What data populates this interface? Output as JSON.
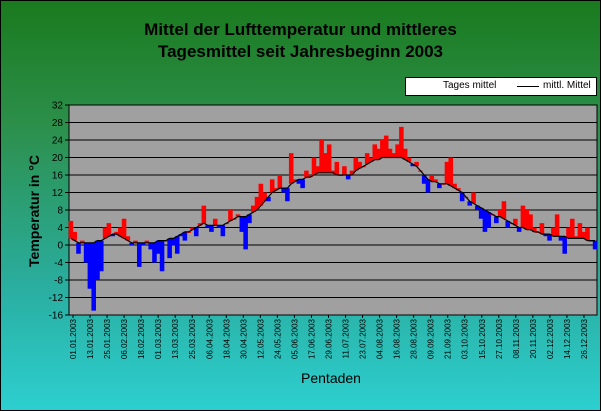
{
  "chart_data": {
    "type": "line",
    "title_lines": [
      "Mittel der Lufttemperatur und mittleres",
      "Tagesmittel seit Jahresbeginn 2003"
    ],
    "xlabel": "Pentaden",
    "ylabel": "Temperatur in °C",
    "ylim": [
      -16,
      32
    ],
    "yticks": [
      -16,
      -12,
      -8,
      -4,
      0,
      4,
      8,
      12,
      16,
      20,
      24,
      28,
      32
    ],
    "grid": true,
    "legend_position": "top-right",
    "x_tick_labels": [
      "01.01.2003",
      "13.01.2003",
      "25.01.2003",
      "06.02.2003",
      "18.02.2003",
      "01.03.2003",
      "13.03.2003",
      "25.03.2003",
      "06.04.2003",
      "18.04.2003",
      "30.04.2003",
      "12.05.2003",
      "24.05.2003",
      "05.06.2003",
      "17.06.2003",
      "29.06.2003",
      "11.07.2003",
      "23.07.2003",
      "04.08.2003",
      "16.08.2003",
      "28.08.2003",
      "09.09.2003",
      "21.09.2003",
      "03.10.2003",
      "15.10.2003",
      "27.10.2003",
      "08.11.2003",
      "20.11.2003",
      "02.12.2003",
      "14.12.2003",
      "26.12.2003"
    ],
    "series": [
      {
        "name": "Tages mittel",
        "above_mean_color": "#ff0000",
        "below_mean_color": "#0000ff",
        "values": [
          5.5,
          3,
          -2,
          1,
          -4,
          -10,
          -15,
          -8,
          -6,
          4,
          5,
          2,
          3,
          4,
          6,
          2,
          0,
          1,
          -5,
          0,
          1,
          -1,
          -4,
          -2,
          -6,
          1,
          -3,
          0,
          -2,
          2,
          1,
          3,
          4,
          2,
          5,
          9,
          4,
          3,
          6,
          4,
          2,
          5,
          8,
          6,
          7,
          3,
          -1,
          5,
          9,
          11,
          14,
          12,
          10,
          15,
          13,
          16,
          12,
          10,
          21,
          15,
          14,
          13,
          17,
          16,
          20,
          18,
          24,
          21,
          23,
          17,
          19,
          16,
          18,
          15,
          17,
          20,
          19,
          18,
          21,
          20,
          23,
          22,
          24,
          25,
          22,
          21,
          23,
          27,
          22,
          20,
          18,
          19,
          17,
          14,
          12,
          16,
          15,
          13,
          14,
          19,
          20,
          14,
          13,
          10,
          11,
          9,
          12,
          8,
          6,
          3,
          4,
          7,
          5,
          8,
          10,
          4,
          5,
          6,
          3,
          9,
          8,
          7,
          4,
          3,
          5,
          2,
          1,
          4,
          7,
          1,
          -2,
          4,
          6,
          2,
          5,
          3,
          4,
          1,
          -1
        ]
      },
      {
        "name": "mittl. Mittel",
        "color": "#000000",
        "values": [
          1.5,
          1.0,
          0.5,
          0.5,
          0.5,
          0.5,
          0.5,
          1.0,
          1.0,
          1.5,
          2.0,
          2.5,
          2.5,
          2.0,
          1.5,
          1.0,
          0.5,
          0.5,
          0.5,
          0.5,
          0.5,
          0.5,
          0.5,
          1.0,
          1.0,
          1.0,
          1.5,
          1.5,
          2.0,
          2.5,
          3.0,
          3.0,
          3.5,
          4.0,
          4.5,
          5.0,
          4.5,
          4.5,
          4.5,
          4.5,
          4.5,
          5.0,
          5.5,
          6.0,
          6.5,
          6.5,
          6.5,
          7.0,
          7.5,
          8.0,
          9.0,
          10.0,
          11.0,
          12.0,
          12.5,
          13.0,
          13.0,
          13.0,
          14.0,
          14.5,
          15.0,
          15.0,
          15.5,
          15.5,
          16.0,
          16.5,
          16.5,
          16.5,
          16.5,
          16.5,
          16.0,
          16.0,
          16.0,
          16.0,
          16.0,
          17.0,
          17.5,
          18.0,
          18.5,
          19.0,
          19.5,
          19.5,
          20.0,
          20.0,
          20.0,
          20.0,
          20.0,
          20.0,
          19.5,
          19.0,
          18.5,
          18.0,
          17.0,
          16.0,
          15.0,
          14.5,
          14.5,
          14.0,
          14.0,
          14.0,
          13.5,
          13.0,
          12.5,
          12.0,
          11.0,
          10.0,
          9.5,
          9.0,
          8.5,
          8.0,
          7.5,
          7.0,
          6.5,
          6.5,
          6.0,
          5.5,
          5.0,
          4.5,
          4.0,
          4.0,
          3.5,
          3.5,
          3.0,
          3.0,
          2.5,
          2.5,
          2.5,
          2.0,
          2.0,
          2.0,
          2.0,
          1.5,
          1.5,
          1.5,
          1.5,
          1.5,
          1.0,
          1.0,
          1.0
        ]
      }
    ]
  },
  "colors": {
    "plot_background": "#a0a0a0",
    "above_mean": "#ff0000",
    "below_mean": "#0000ff",
    "mean_line": "#000000"
  }
}
